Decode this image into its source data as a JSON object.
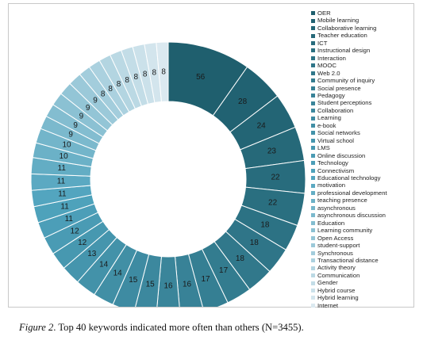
{
  "chart_data": {
    "type": "pie",
    "subtype": "donut",
    "categories": [
      "OER",
      "Mobile learning",
      "Collaborative learning",
      "Teacher education",
      "ICT",
      "Instructional design",
      "Interaction",
      "MOOC",
      "Web 2.0",
      "Community of inquiry",
      "Social presence",
      "Pedagogy",
      "Student perceptions",
      "Collaboration",
      "Learning",
      "e-book",
      "Social networks",
      "Virtual school",
      "LMS",
      "Online discussion",
      "Technology",
      "Connectivism",
      "Educational technology",
      "motivation",
      "professional development",
      "teaching presence",
      "asynchronous",
      "asynchronous discussion",
      "Education",
      "Learning community",
      "Open Access",
      "student-support",
      "Synchronous",
      "Transactional distance",
      "Activity theory",
      "Communication",
      "Gender",
      "Hybrid course",
      "Hybrid learning",
      "Internet"
    ],
    "values": [
      56,
      28,
      24,
      23,
      22,
      22,
      18,
      18,
      18,
      17,
      17,
      16,
      16,
      15,
      15,
      14,
      14,
      13,
      12,
      12,
      11,
      11,
      11,
      11,
      11,
      10,
      10,
      9,
      9,
      9,
      9,
      9,
      8,
      8,
      8,
      8,
      8,
      8,
      8,
      8
    ],
    "legend_position": "right",
    "color_start": "#1f5f6e",
    "color_mid": "#4fa3bd",
    "color_end": "#dbe9f0"
  },
  "caption": {
    "figure_label": "Figure 2",
    "text": ". Top 40 keywords indicated more often than others (N=3455)."
  }
}
